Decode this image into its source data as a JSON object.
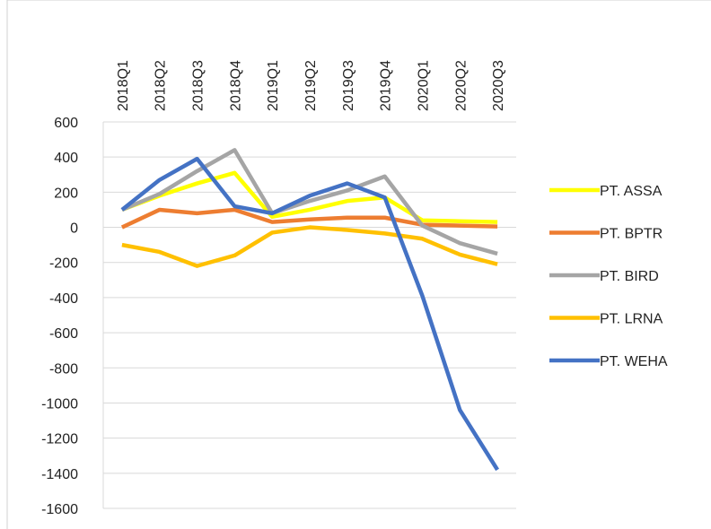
{
  "chart_data": {
    "type": "line",
    "categories": [
      "2018Q1",
      "2018Q2",
      "2018Q3",
      "2018Q4",
      "2019Q1",
      "2019Q2",
      "2019Q3",
      "2019Q4",
      "2020Q1",
      "2020Q2",
      "2020Q3"
    ],
    "series": [
      {
        "name": "PT. ASSA",
        "color": "#ffff00",
        "values": [
          100,
          180,
          250,
          310,
          60,
          100,
          150,
          170,
          40,
          35,
          30
        ]
      },
      {
        "name": "PT. BPTR",
        "color": "#ed7d31",
        "values": [
          0,
          100,
          80,
          100,
          30,
          45,
          55,
          55,
          15,
          10,
          5
        ]
      },
      {
        "name": "PT. BIRD",
        "color": "#a5a5a5",
        "values": [
          100,
          190,
          320,
          440,
          80,
          150,
          210,
          290,
          10,
          -90,
          -150
        ]
      },
      {
        "name": "PT. LRNA",
        "color": "#ffc000",
        "values": [
          -100,
          -140,
          -220,
          -160,
          -30,
          0,
          -15,
          -35,
          -65,
          -155,
          -210
        ]
      },
      {
        "name": "PT. WEHA",
        "color": "#4472c4",
        "values": [
          100,
          270,
          390,
          120,
          80,
          180,
          250,
          170,
          -390,
          -1040,
          -1380
        ]
      }
    ],
    "ylim": [
      -1600,
      600
    ],
    "yticks": [
      -1600,
      -1400,
      -1200,
      -1000,
      -800,
      -600,
      -400,
      -200,
      0,
      200,
      400,
      600
    ],
    "grid": true,
    "legend": "right"
  }
}
